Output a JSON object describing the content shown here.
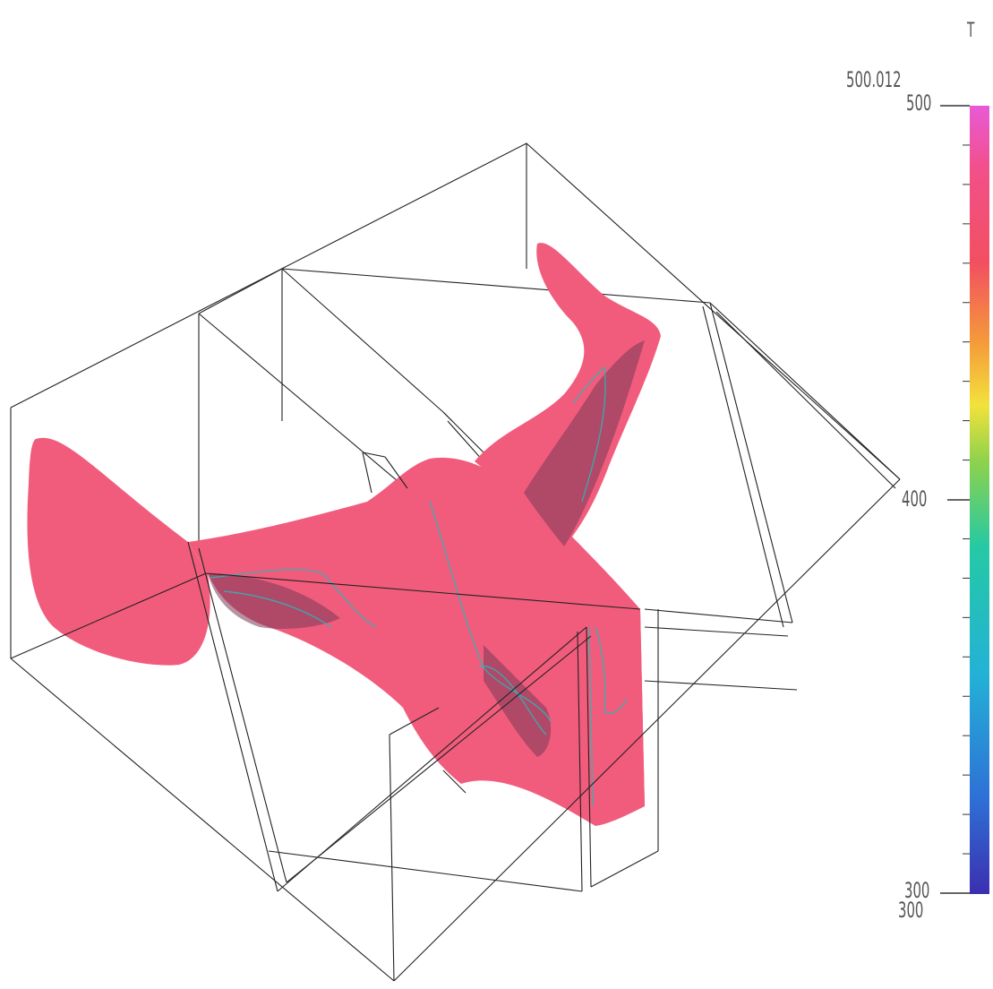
{
  "colorbar": {
    "variable": "T",
    "max_value_label": "500.012",
    "min_value_label": "300",
    "tick_top_label": "500",
    "tick_mid_label": "400",
    "tick_bottom_label": "300",
    "colors": [
      "#3b2fb0",
      "#2f6fd6",
      "#23b2d6",
      "#25c9a4",
      "#8fd24b",
      "#f2e23c",
      "#f59a3a",
      "#f25060",
      "#f2508a",
      "#e85ad6"
    ]
  },
  "surface": {
    "fill_color": "#f25c7c",
    "contour_color": "#2bb6b6",
    "edge_color": "#222222"
  }
}
